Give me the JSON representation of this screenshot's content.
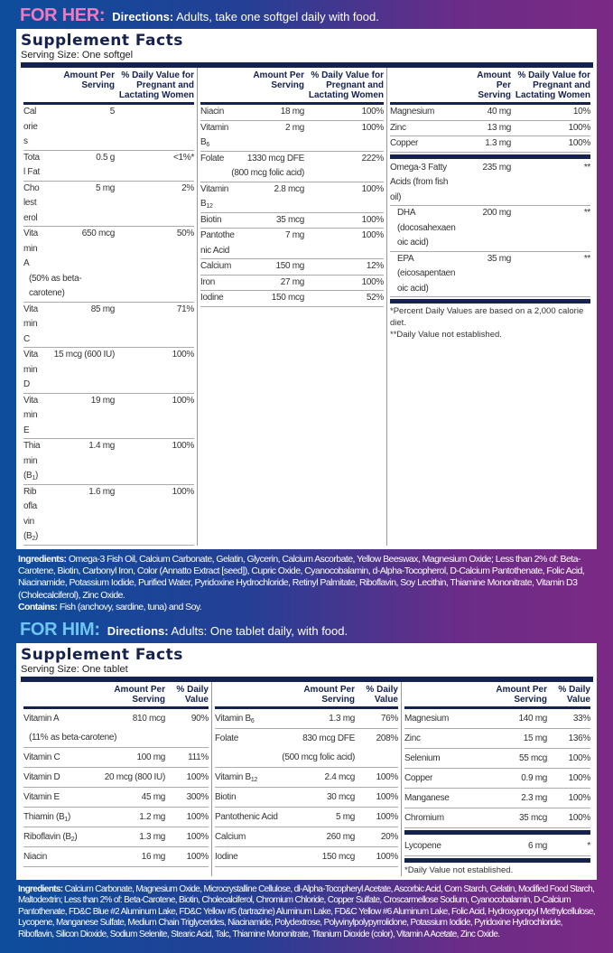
{
  "her": {
    "label": "FOR HER:",
    "directions_label": "Directions:",
    "directions": "Adults, take one softgel daily with food.",
    "label_color": "#f07ac0",
    "title": "Supplement Facts",
    "serving": "Serving Size: One softgel",
    "head_amount": [
      "Amount Per",
      "Serving"
    ],
    "head_dv": [
      "% Daily Value for",
      "Pregnant and",
      "Lactating Women"
    ],
    "columns": [
      [
        {
          "n": "Calories",
          "a": "5",
          "d": ""
        },
        {
          "n": "Total Fat",
          "a": "0.5 g",
          "d": "<1%*"
        },
        {
          "n": "Cholesterol",
          "a": "5 mg",
          "d": "2%"
        },
        {
          "n": "Vitamin A",
          "a": "650 mcg",
          "d": "50%",
          "n2": "(50% as beta-carotene)"
        },
        {
          "n": "Vitamin C",
          "a": "85 mg",
          "d": "71%"
        },
        {
          "n": "Vitamin D",
          "a": "15 mcg (600 IU)",
          "d": "100%"
        },
        {
          "n": "Vitamin E",
          "a": "19 mg",
          "d": "100%"
        },
        {
          "n": "Thiamin (B",
          "s": "1",
          "x": ")",
          "a": "1.4 mg",
          "d": "100%"
        },
        {
          "n": "Riboflavin (B",
          "s": "2",
          "x": ")",
          "a": "1.6 mg",
          "d": "100%"
        }
      ],
      [
        {
          "n": "Niacin",
          "a": "18 mg",
          "d": "100%"
        },
        {
          "n": "Vitamin B",
          "s": "6",
          "a": "2 mg",
          "d": "100%"
        },
        {
          "n": "Folate",
          "a": "1330 mcg DFE",
          "a2": "(800 mcg folic acid)",
          "d": "222%"
        },
        {
          "n": "Vitamin B",
          "s": "12",
          "a": "2.8 mcg",
          "d": "100%"
        },
        {
          "n": "Biotin",
          "a": "35 mcg",
          "d": "100%"
        },
        {
          "n": "Pantothenic Acid",
          "a": "7 mg",
          "d": "100%"
        },
        {
          "n": "Calcium",
          "a": "150 mg",
          "d": "12%"
        },
        {
          "n": "Iron",
          "a": "27 mg",
          "d": "100%"
        },
        {
          "n": "Iodine",
          "a": "150 mcg",
          "d": "52%"
        }
      ],
      [
        {
          "n": "Magnesium",
          "a": "40 mg",
          "d": "10%"
        },
        {
          "n": "Zinc",
          "a": "13 mg",
          "d": "100%"
        },
        {
          "n": "Copper",
          "a": "1.3 mg",
          "d": "100%"
        }
      ]
    ],
    "extra": [
      {
        "n": "Omega-3 Fatty Acids (from fish oil)",
        "a": "235 mg",
        "d": "**"
      },
      {
        "n": "DHA (docosahexaenoic acid)",
        "a": "200 mg",
        "d": "**",
        "indent": true
      },
      {
        "n": "EPA (eicosapentaenoic acid)",
        "a": "35 mg",
        "d": "**",
        "indent": true
      }
    ],
    "notes": [
      "*Percent Daily Values are based on a 2,000 calorie diet.",
      "**Daily Value not established."
    ],
    "ingredients_label": "Ingredients:",
    "ingredients": "Omega-3 Fish Oil, Calcium Carbonate, Gelatin, Glycerin, Calcium Ascorbate, Yellow Beeswax, Magnesium Oxide; Less than 2% of: Beta-Carotene, Biotin, Carbonyl Iron, Color (Annatto Extract [seed]), Cupric Oxide, Cyanocobalamin, d-Alpha-Tocopherol, D-Calcium Pantothenate, Folic Acid, Niacinamide, Potassium Iodide, Purified Water, Pyridoxine Hydrochloride, Retinyl Palmitate, Riboflavin, Soy Lecithin, Thiamine Mononitrate, Vitamin D3 (Cholecalciferol), Zinc Oxide.",
    "contains_label": "Contains:",
    "contains": "Fish (anchovy, sardine, tuna) and Soy."
  },
  "him": {
    "label": "FOR HIM:",
    "directions_label": "Directions:",
    "directions": "Adults: One tablet daily, with food.",
    "label_color": "#6ec6f0",
    "title": "Supplement Facts",
    "serving": "Serving Size: One tablet",
    "head_amount": [
      "Amount Per",
      "Serving"
    ],
    "head_dv": [
      "% Daily",
      "Value"
    ],
    "columns": [
      [
        {
          "n": "Vitamin A",
          "a": "810 mcg",
          "d": "90%",
          "n2": "(11% as beta-carotene)"
        },
        {
          "n": "Vitamin C",
          "a": "100 mg",
          "d": "111%"
        },
        {
          "n": "Vitamin D",
          "a": "20 mcg (800 IU)",
          "d": "100%"
        },
        {
          "n": "Vitamin E",
          "a": "45 mg",
          "d": "300%"
        },
        {
          "n": "Thiamin (B",
          "s": "1",
          "x": ")",
          "a": "1.2 mg",
          "d": "100%"
        },
        {
          "n": "Riboflavin (B",
          "s": "2",
          "x": ")",
          "a": "1.3 mg",
          "d": "100%"
        },
        {
          "n": "Niacin",
          "a": "16 mg",
          "d": "100%"
        }
      ],
      [
        {
          "n": "Vitamin B",
          "s": "6",
          "a": "1.3 mg",
          "d": "76%"
        },
        {
          "n": "Folate",
          "a": "830 mcg DFE",
          "a2": "(500 mcg folic acid)",
          "d": "208%"
        },
        {
          "n": "Vitamin B",
          "s": "12",
          "a": "2.4 mcg",
          "d": "100%"
        },
        {
          "n": "Biotin",
          "a": "30 mcg",
          "d": "100%"
        },
        {
          "n": "Pantothenic Acid",
          "a": "5 mg",
          "d": "100%"
        },
        {
          "n": "Calcium",
          "a": "260 mg",
          "d": "20%"
        },
        {
          "n": "Iodine",
          "a": "150 mcg",
          "d": "100%"
        }
      ],
      [
        {
          "n": "Magnesium",
          "a": "140 mg",
          "d": "33%"
        },
        {
          "n": "Zinc",
          "a": "15 mg",
          "d": "136%"
        },
        {
          "n": "Selenium",
          "a": "55 mcg",
          "d": "100%"
        },
        {
          "n": "Copper",
          "a": "0.9 mg",
          "d": "100%"
        },
        {
          "n": "Manganese",
          "a": "2.3 mg",
          "d": "100%"
        },
        {
          "n": "Chromium",
          "a": "35 mcg",
          "d": "100%"
        }
      ]
    ],
    "extra": [
      {
        "n": "Lycopene",
        "a": "6 mg",
        "d": "*"
      }
    ],
    "notes": [
      "*Daily Value not established."
    ],
    "ingredients_label": "Ingredients:",
    "ingredients": "Calcium Carbonate, Magnesium Oxide, Microcrystalline Cellulose, dl-Alpha-Tocopheryl Acetate, Ascorbic Acid, Corn Starch, Gelatin, Modified Food Starch, Maltodextrin; Less than 2% of: Beta-Carotene, Biotin, Cholecalciferol, Chromium Chloride, Copper Sulfate, Croscarmellose Sodium, Cyanocobalamin, D-Calcium Pantothenate, FD&C Blue #2 Aluminum Lake, FD&C Yellow #5 (tartrazine) Aluminum Lake, FD&C Yellow #6 Aluminum Lake, Folic Acid, Hydroxypropyl Methylcellulose, Lycopene, Manganese Sulfate, Medium Chain Triglycerides, Niacinamide, Polydextrose, Polyvinylpolypyrrolidone, Potassium Iodide, Pyridoxine Hydrochloride, Riboflavin, Silicon Dioxide, Sodium Selenite, Stearic Acid, Talc, Thiamine Mononitrate, Titanium Dioxide (color), Vitamin A Acetate, Zinc Oxide."
  }
}
